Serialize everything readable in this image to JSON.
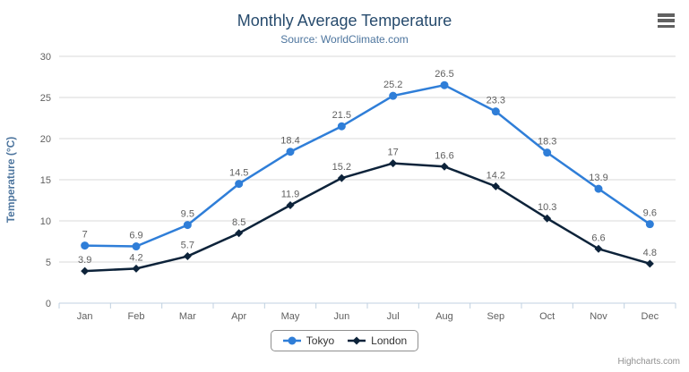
{
  "credits": "Highcharts.com",
  "export_menu": {
    "icon": "hamburger-icon"
  },
  "chart_data": {
    "type": "line",
    "title": "Monthly Average Temperature",
    "subtitle": "Source: WorldClimate.com",
    "categories": [
      "Jan",
      "Feb",
      "Mar",
      "Apr",
      "May",
      "Jun",
      "Jul",
      "Aug",
      "Sep",
      "Oct",
      "Nov",
      "Dec"
    ],
    "series": [
      {
        "name": "Tokyo",
        "color": "#2f7ed8",
        "marker": "circle",
        "values": [
          7,
          6.9,
          9.5,
          14.5,
          18.4,
          21.5,
          25.2,
          26.5,
          23.3,
          18.3,
          13.9,
          9.6
        ]
      },
      {
        "name": "London",
        "color": "#0d233a",
        "marker": "diamond",
        "values": [
          3.9,
          4.2,
          5.7,
          8.5,
          11.9,
          15.2,
          17,
          16.6,
          14.2,
          10.3,
          6.6,
          4.8
        ]
      }
    ],
    "xlabel": "",
    "ylabel": "Temperature (°C)",
    "ylim": [
      0,
      30
    ],
    "yticks": [
      0,
      5,
      10,
      15,
      20,
      25,
      30
    ],
    "grid": true,
    "data_labels": true,
    "legend_position": "bottom"
  },
  "colors": {
    "title": "#274b6d",
    "subtitle": "#4d759e",
    "axis_title": "#4d759e",
    "axis_label": "#606060",
    "data_label": "#606060",
    "grid_line": "#d8d8d8",
    "axis_line": "#c0d0e0",
    "legend_text": "#333333",
    "legend_border": "#909090",
    "credits": "#909090",
    "menu_icon": "#616161",
    "background": "#ffffff"
  }
}
